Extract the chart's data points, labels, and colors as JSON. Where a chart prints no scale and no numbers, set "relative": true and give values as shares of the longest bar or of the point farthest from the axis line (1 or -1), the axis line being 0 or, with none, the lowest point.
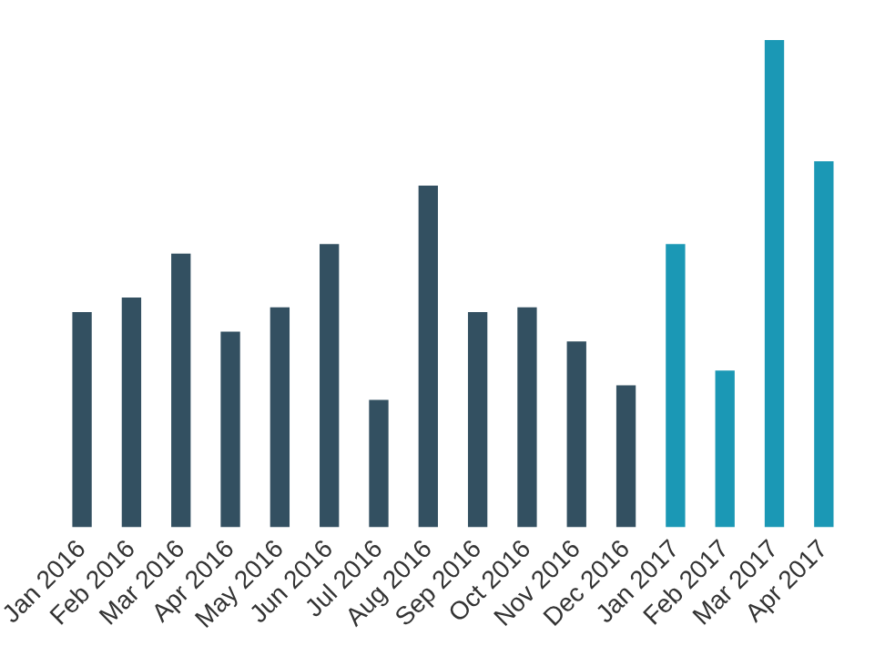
{
  "chart_data": {
    "type": "bar",
    "relative": true,
    "grid": false,
    "legend": false,
    "categories": [
      "Jan 2016",
      "Feb 2016",
      "Mar 2016",
      "Apr 2016",
      "May 2016",
      "Jun 2016",
      "Jul 2016",
      "Aug 2016",
      "Sep 2016",
      "Oct 2016",
      "Nov 2016",
      "Dec 2016",
      "Jan 2017",
      "Feb 2017",
      "Mar 2017",
      "Apr 2017"
    ],
    "values": [
      0.44,
      0.47,
      0.56,
      0.4,
      0.45,
      0.58,
      0.26,
      0.7,
      0.44,
      0.45,
      0.38,
      0.29,
      0.58,
      0.32,
      1,
      0.75
    ],
    "colors": [
      "#335061",
      "#335061",
      "#335061",
      "#335061",
      "#335061",
      "#335061",
      "#335061",
      "#335061",
      "#335061",
      "#335061",
      "#335061",
      "#335061",
      "#1b98b5",
      "#1b98b5",
      "#1b98b5",
      "#1b98b5"
    ]
  }
}
